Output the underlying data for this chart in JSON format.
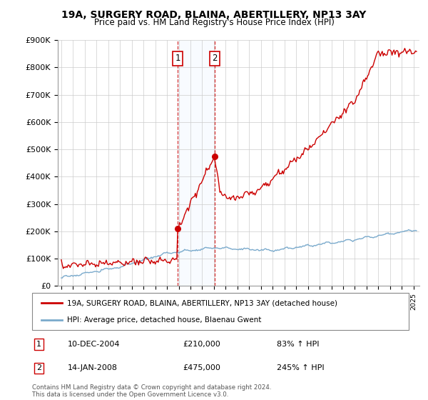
{
  "title": "19A, SURGERY ROAD, BLAINA, ABERTILLERY, NP13 3AY",
  "subtitle": "Price paid vs. HM Land Registry's House Price Index (HPI)",
  "purchase1_price": 210000,
  "purchase1_pct": "83% ↑ HPI",
  "purchase1_date_str": "10-DEC-2004",
  "purchase2_price": 475000,
  "purchase2_pct": "245% ↑ HPI",
  "purchase2_date_str": "14-JAN-2008",
  "legend_line1": "19A, SURGERY ROAD, BLAINA, ABERTILLERY, NP13 3AY (detached house)",
  "legend_line2": "HPI: Average price, detached house, Blaenau Gwent",
  "footnote": "Contains HM Land Registry data © Crown copyright and database right 2024.\nThis data is licensed under the Open Government Licence v3.0.",
  "line_color_red": "#cc0000",
  "line_color_blue": "#7aaacc",
  "shade_color": "#ddeeff",
  "vline_color": "#cc0000",
  "ylim": [
    0,
    900000
  ],
  "yticks": [
    0,
    100000,
    200000,
    300000,
    400000,
    500000,
    600000,
    700000,
    800000,
    900000
  ],
  "ytick_labels": [
    "£0",
    "£100K",
    "£200K",
    "£300K",
    "£400K",
    "£500K",
    "£600K",
    "£700K",
    "£800K",
    "£900K"
  ],
  "p1_year": 2004.92,
  "p2_year": 2008.04
}
